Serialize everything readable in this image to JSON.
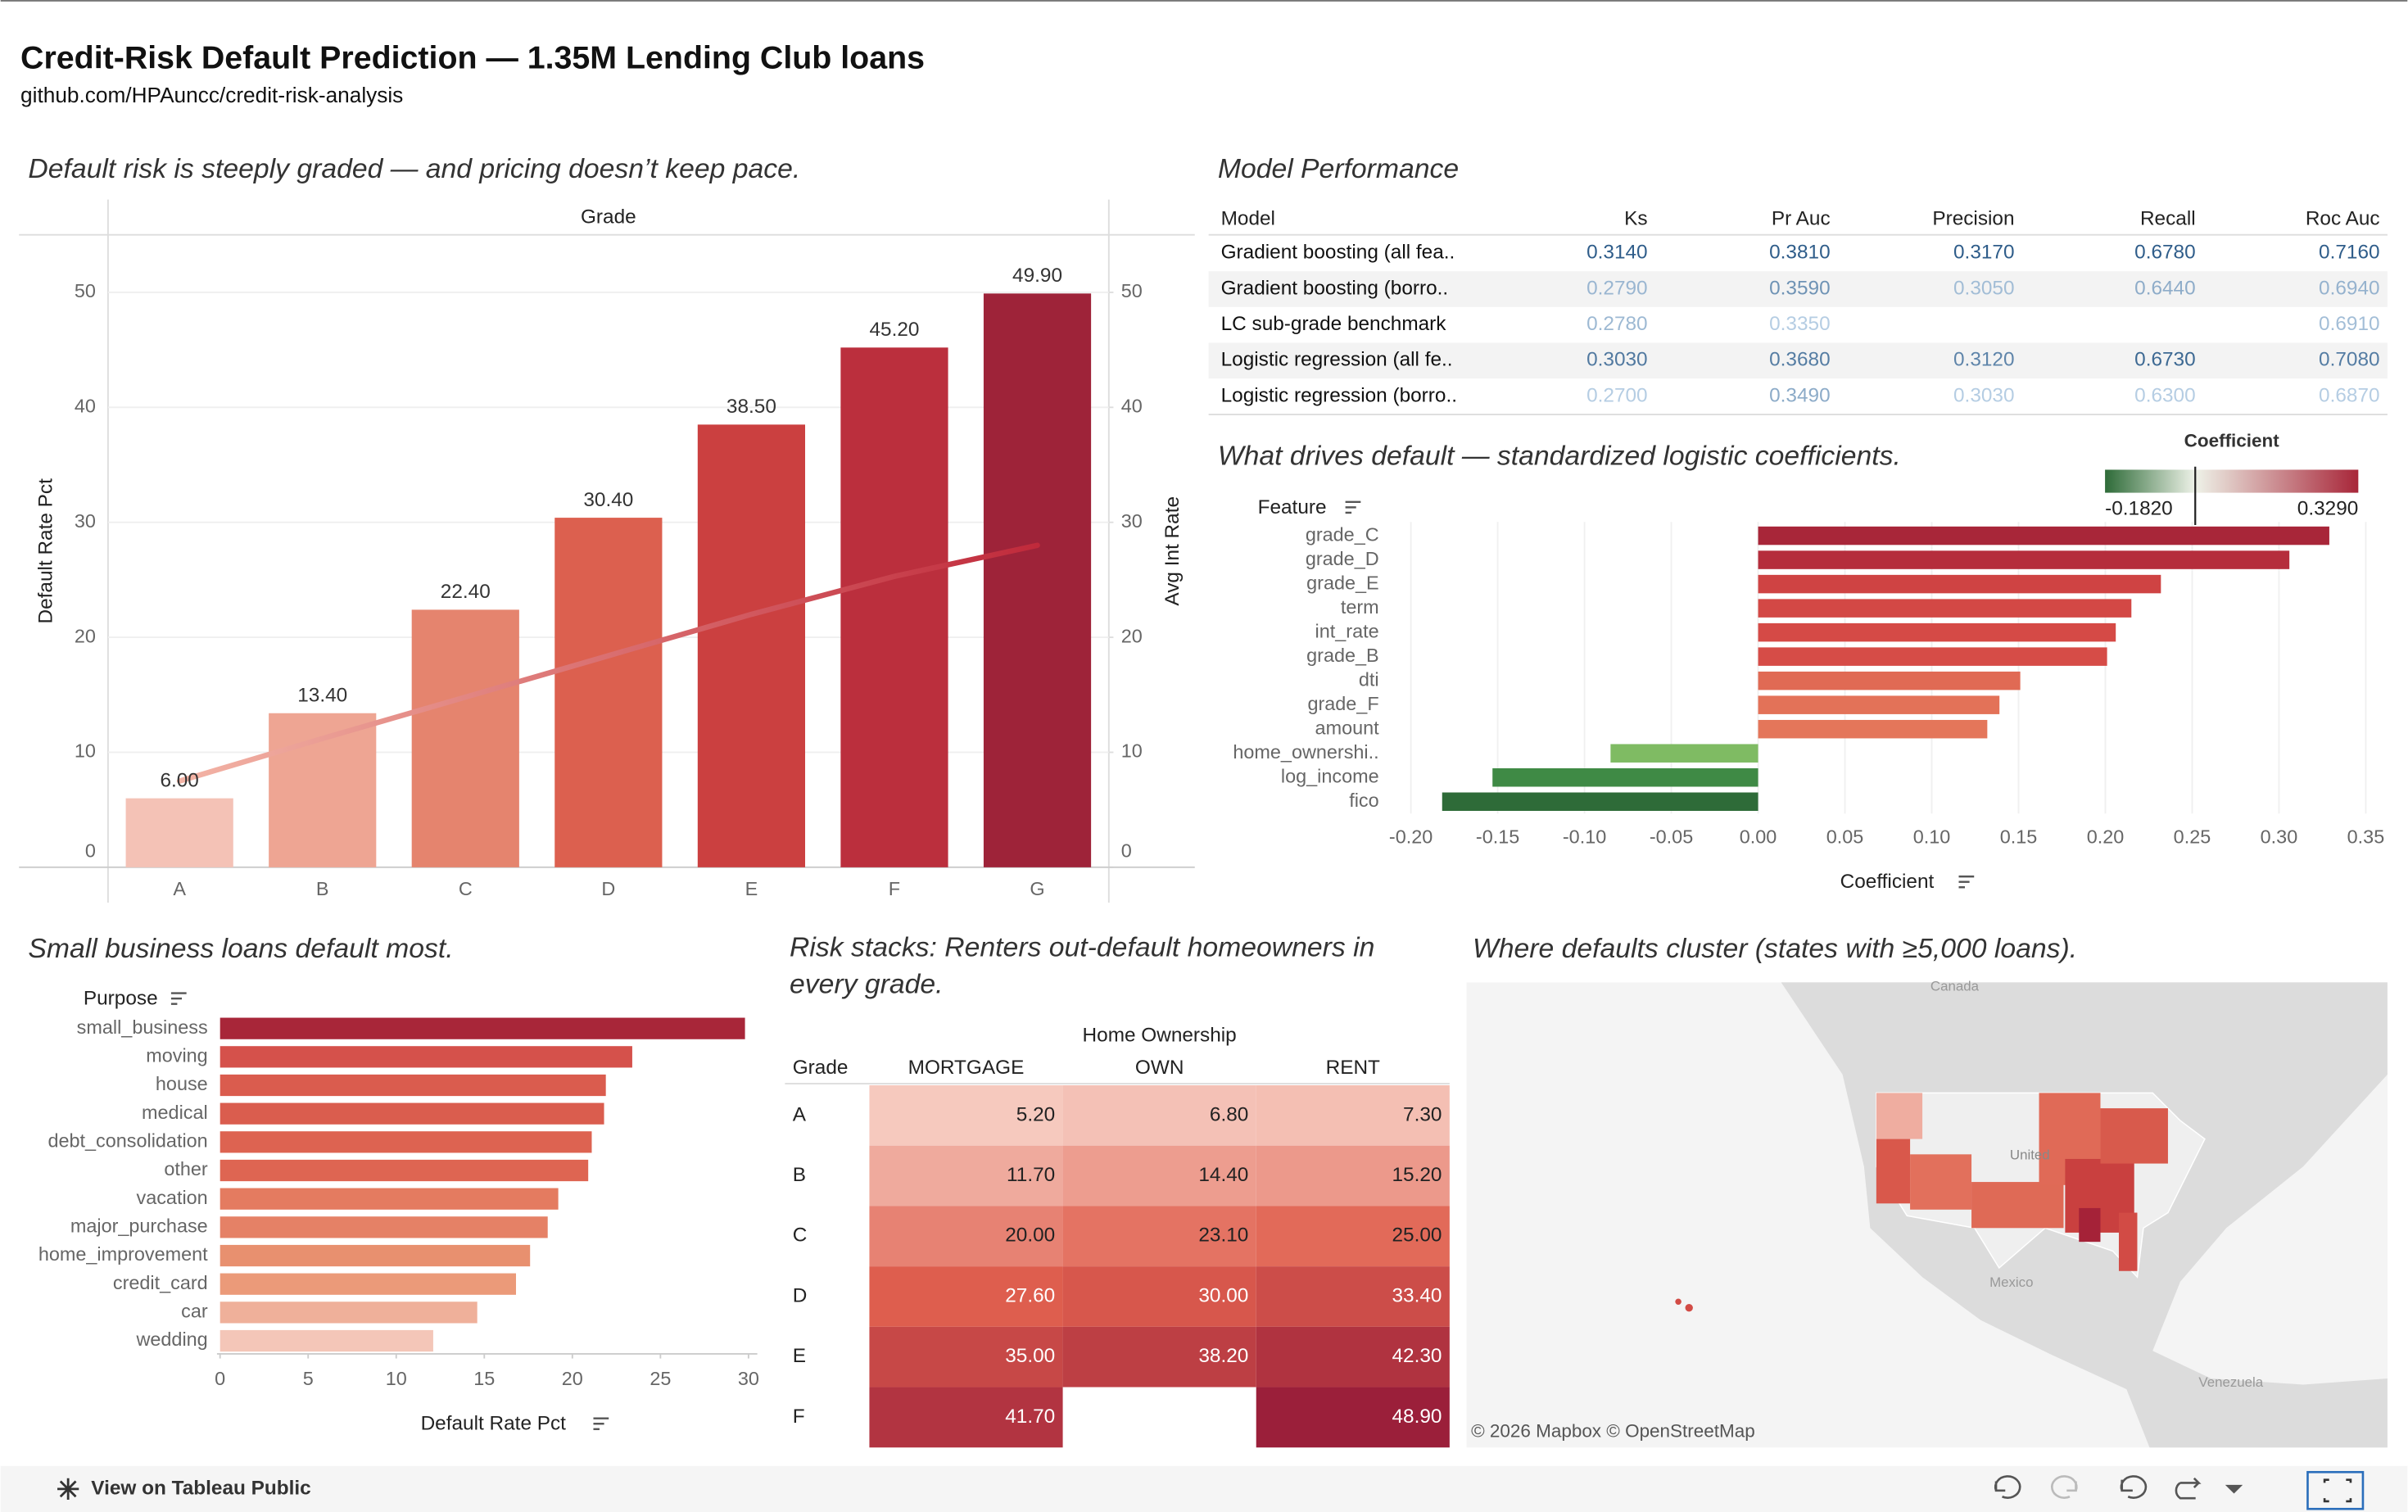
{
  "header": {
    "title": "Credit-Risk Default Prediction — 1.35M Lending Club loans",
    "subtitle": "github.com/HPAuncc/credit-risk-analysis"
  },
  "chart_data": [
    {
      "type": "bar",
      "title": "Default risk is steeply graded — and pricing doesn’t keep pace.",
      "column_header": "Grade",
      "categories": [
        "A",
        "B",
        "C",
        "D",
        "E",
        "F",
        "G"
      ],
      "series": [
        {
          "name": "Default Rate Pct",
          "colors": [
            "#f4c2b6",
            "#eea593",
            "#e5846e",
            "#dc604f",
            "#cb4040",
            "#bb2f3d",
            "#9e2339"
          ],
          "values": [
            6.0,
            13.4,
            22.4,
            30.4,
            38.5,
            45.2,
            49.9
          ],
          "value_labels": [
            "6.00",
            "13.40",
            "22.40",
            "30.40",
            "38.50",
            "45.20",
            "49.90"
          ]
        },
        {
          "name": "Avg Int Rate",
          "type": "line",
          "axis": "y2",
          "color": "#c8303f",
          "values": [
            7.5,
            11.2,
            14.8,
            18.4,
            22.0,
            25.3,
            28.0
          ]
        }
      ],
      "ylim": [
        0,
        55
      ],
      "yticks": [
        0,
        10,
        20,
        30,
        40,
        50
      ],
      "y2lim": [
        0,
        55
      ],
      "y2ticks": [
        0,
        10,
        20,
        30,
        40,
        50
      ],
      "grid": true
    },
    {
      "type": "hbar",
      "title": "What drives default — standardized logistic coefficients.",
      "header": "Feature",
      "xlabel": "Coefficient",
      "categories": [
        "grade_C",
        "grade_D",
        "grade_E",
        "term",
        "int_rate",
        "grade_B",
        "dti",
        "grade_F",
        "amount",
        "home_ownershi..",
        "log_income",
        "fico"
      ],
      "values": [
        0.329,
        0.306,
        0.232,
        0.215,
        0.206,
        0.201,
        0.151,
        0.139,
        0.132,
        -0.085,
        -0.153,
        -0.182
      ],
      "colors": [
        "#a82639",
        "#b52d3c",
        "#cf4343",
        "#d34845",
        "#d54a46",
        "#d64c47",
        "#e06a54",
        "#e37258",
        "#e4765a",
        "#7fbb63",
        "#3f8a45",
        "#2e6b38"
      ],
      "xlim": [
        -0.206,
        0.3625
      ],
      "xticks": [
        {
          "value": -0.2,
          "label": "-0.20"
        },
        -0.15,
        {
          "value": -0.1,
          "label": "-0.10"
        },
        -0.05,
        {
          "value": 0,
          "label": "0.00"
        },
        0.05,
        {
          "value": 0.1,
          "label": "0.10"
        },
        0.15,
        {
          "value": 0.2,
          "label": "0.20"
        },
        0.25,
        {
          "value": 0.3,
          "label": "0.30"
        },
        0.35
      ],
      "grid": true,
      "legend": {
        "title": "Coefficient",
        "min": {
          "value": -0.182,
          "label": "-0.1820"
        },
        "max": {
          "value": 0.329,
          "label": "0.3290"
        },
        "colors": [
          "#2e6b38",
          "#eef2e8",
          "#a82639"
        ]
      }
    },
    {
      "type": "hbar",
      "title": "Small business loans default most.",
      "header": "Purpose",
      "xlabel": "Default Rate Pct",
      "categories": [
        "small_business",
        "moving",
        "house",
        "medical",
        "debt_consolidation",
        "other",
        "vacation",
        "major_purchase",
        "home_improvement",
        "credit_card",
        "car",
        "wedding"
      ],
      "values": [
        29.8,
        23.4,
        21.9,
        21.8,
        21.1,
        20.9,
        19.2,
        18.6,
        17.6,
        16.8,
        14.6,
        12.1
      ],
      "colors": [
        "#a82639",
        "#d5514b",
        "#da5c4e",
        "#da5d4e",
        "#dd6351",
        "#de6552",
        "#e47b60",
        "#e58166",
        "#e8906f",
        "#eb9a79",
        "#efb09a",
        "#f4c6b8"
      ],
      "xlim": [
        0,
        30.5
      ],
      "xticks": [
        0,
        5,
        10,
        15,
        20,
        25,
        30
      ],
      "grid": false
    },
    {
      "type": "heatmap",
      "title": "Risk stacks: Renters out-default homeowners in every grade.",
      "column_header": "Home Ownership",
      "row_header": "Grade",
      "columns": [
        "MORTGAGE",
        "OWN",
        "RENT"
      ],
      "rows": [
        "A",
        "B",
        "C",
        "D",
        "E",
        "F"
      ],
      "values": [
        [
          5.2,
          6.8,
          7.3
        ],
        [
          11.7,
          14.4,
          15.2
        ],
        [
          20.0,
          23.1,
          25.0
        ],
        [
          27.6,
          30.0,
          33.4
        ],
        [
          35.0,
          38.2,
          42.3
        ],
        [
          41.7,
          null,
          48.9
        ]
      ],
      "value_labels": [
        [
          "5.20",
          "6.80",
          "7.30"
        ],
        [
          "11.70",
          "14.40",
          "15.20"
        ],
        [
          "20.00",
          "23.10",
          "25.00"
        ],
        [
          "27.60",
          "30.00",
          "33.40"
        ],
        [
          "35.00",
          "38.20",
          "42.30"
        ],
        [
          "41.70",
          null,
          "48.90"
        ]
      ],
      "color_scale": [
        "#f6c9be",
        "#e0604f",
        "#9b1f3a"
      ]
    }
  ],
  "model_performance": {
    "title": "Model Performance",
    "columns": [
      "Model",
      "Ks",
      "Pr Auc",
      "Precision",
      "Recall",
      "Roc Auc"
    ],
    "rows": [
      [
        "Gradient boosting (all fea..",
        "0.3140",
        "0.3810",
        "0.3170",
        "0.6780",
        "0.7160"
      ],
      [
        "Gradient boosting (borro..",
        "0.2790",
        "0.3590",
        "0.3050",
        "0.6440",
        "0.6940"
      ],
      [
        "LC sub-grade benchmark",
        "0.2780",
        "0.3350",
        null,
        null,
        "0.6910"
      ],
      [
        "Logistic regression (all fe..",
        "0.3030",
        "0.3680",
        "0.3120",
        "0.6730",
        "0.7080"
      ],
      [
        "Logistic regression (borro..",
        "0.2700",
        "0.3490",
        "0.3030",
        "0.6300",
        "0.6870"
      ]
    ]
  },
  "map": {
    "title": "Where defaults cluster (states with ≥5,000 loans).",
    "place_labels": [
      "Canada",
      "United",
      "Mexico",
      "Venezuela"
    ],
    "attribution": "© 2026 Mapbox © OpenStreetMap"
  },
  "footer": {
    "link": "View on Tableau Public"
  }
}
